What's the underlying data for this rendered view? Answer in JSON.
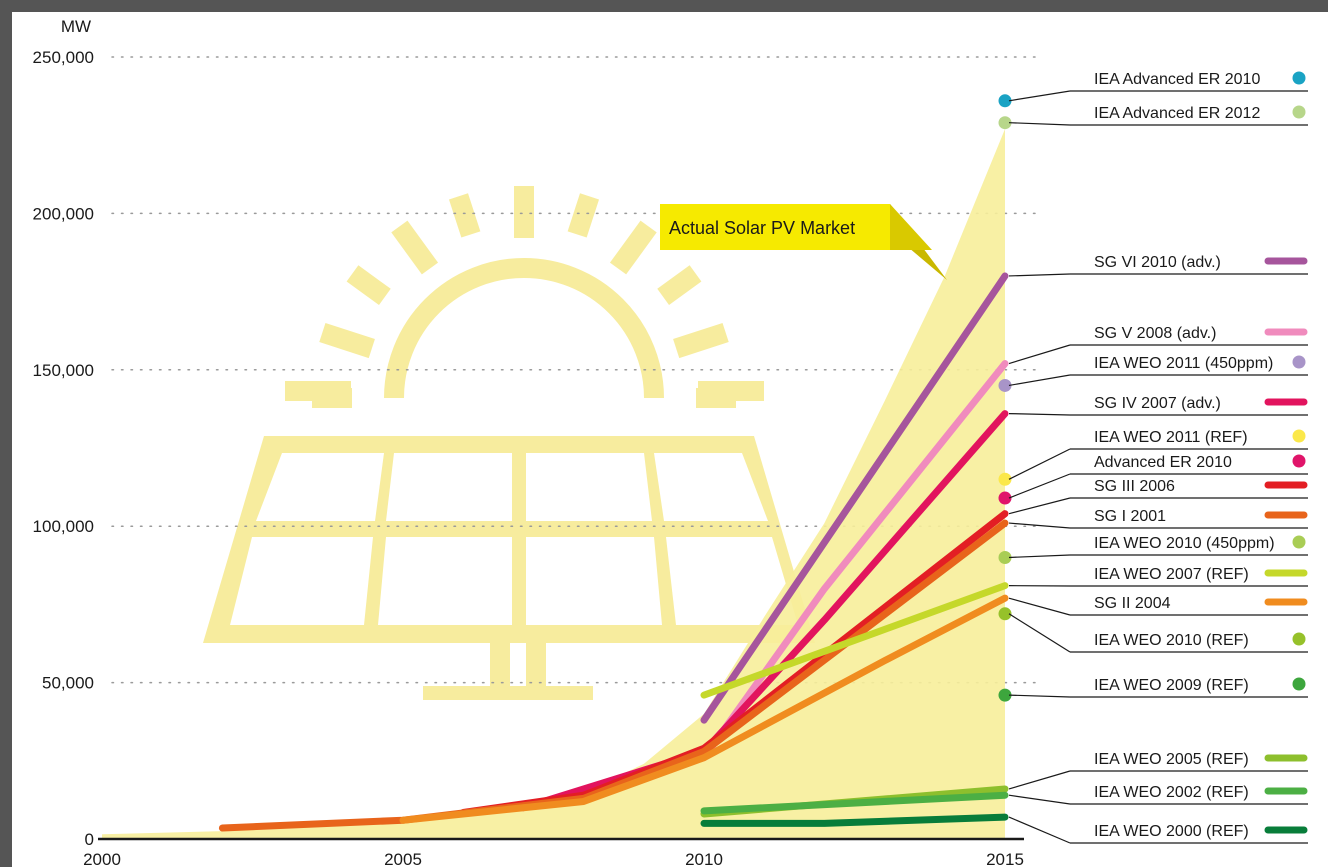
{
  "chart_data": {
    "type": "line",
    "ylabel": "MW",
    "xlim": [
      2000,
      2015
    ],
    "ylim": [
      0,
      250000
    ],
    "x_ticks": [
      "2000",
      "2005",
      "2010",
      "2015"
    ],
    "y_ticks": [
      "0",
      "50,000",
      "100,000",
      "150,000",
      "200,000",
      "250,000"
    ],
    "grid": "horizontal dotted",
    "legend_placement": "right",
    "annotation": "Actual Solar PV Market",
    "actual_market": {
      "name": "Actual Solar PV Market",
      "color": "#f7ee9a",
      "points": [
        [
          2000,
          1500
        ],
        [
          2002,
          2500
        ],
        [
          2004,
          4500
        ],
        [
          2006,
          8000
        ],
        [
          2008,
          15000
        ],
        [
          2009,
          24000
        ],
        [
          2010,
          40000
        ],
        [
          2011,
          71000
        ],
        [
          2012,
          101000
        ],
        [
          2013,
          140000
        ],
        [
          2014,
          180000
        ],
        [
          2015,
          227000
        ]
      ]
    },
    "series": [
      {
        "name": "IEA Advanced ER 2010",
        "kind": "point",
        "color": "#1aa3c4",
        "points": [
          [
            2015,
            236000
          ]
        ]
      },
      {
        "name": "IEA Advanced ER 2012",
        "kind": "point",
        "color": "#b7d68a",
        "points": [
          [
            2015,
            229000
          ]
        ]
      },
      {
        "name": "SG VI 2010 (adv.)",
        "kind": "line",
        "color": "#a6559c",
        "points": [
          [
            2010,
            38000
          ],
          [
            2015,
            180000
          ]
        ]
      },
      {
        "name": "SG V 2008 (adv.)",
        "kind": "line",
        "color": "#f08bbd",
        "points": [
          [
            2008,
            15000
          ],
          [
            2010,
            26000
          ],
          [
            2012,
            80000
          ],
          [
            2015,
            152000
          ]
        ]
      },
      {
        "name": "IEA WEO 2011 (450ppm)",
        "kind": "point",
        "color": "#a894c8",
        "points": [
          [
            2015,
            145000
          ]
        ]
      },
      {
        "name": "SG IV 2007 (adv.)",
        "kind": "line",
        "color": "#e2145e",
        "points": [
          [
            2007,
            10000
          ],
          [
            2010,
            28000
          ],
          [
            2012,
            70000
          ],
          [
            2015,
            136000
          ]
        ]
      },
      {
        "name": "IEA WEO 2011 (REF)",
        "kind": "point",
        "color": "#fbe84a",
        "points": [
          [
            2015,
            115000
          ]
        ]
      },
      {
        "name": "Advanced ER 2010",
        "kind": "point",
        "color": "#e0156a",
        "points": [
          [
            2015,
            109000
          ]
        ]
      },
      {
        "name": "SG III 2006",
        "kind": "line",
        "color": "#e31e24",
        "points": [
          [
            2006,
            8500
          ],
          [
            2008,
            14000
          ],
          [
            2010,
            29000
          ],
          [
            2015,
            104000
          ]
        ]
      },
      {
        "name": "SG I 2001",
        "kind": "line",
        "color": "#e8641b",
        "points": [
          [
            2002,
            3500
          ],
          [
            2005,
            6000
          ],
          [
            2008,
            13000
          ],
          [
            2010,
            28000
          ],
          [
            2015,
            101000
          ]
        ]
      },
      {
        "name": "IEA WEO 2010 (450ppm)",
        "kind": "point",
        "color": "#a9cd55",
        "points": [
          [
            2015,
            90000
          ]
        ]
      },
      {
        "name": "IEA WEO 2007 (REF)",
        "kind": "line",
        "color": "#c5d82a",
        "points": [
          [
            2010,
            46000
          ],
          [
            2015,
            81000
          ]
        ]
      },
      {
        "name": "SG II 2004",
        "kind": "line",
        "color": "#f08c1f",
        "points": [
          [
            2005,
            6000
          ],
          [
            2008,
            12000
          ],
          [
            2010,
            26000
          ],
          [
            2013,
            57000
          ],
          [
            2015,
            77000
          ]
        ]
      },
      {
        "name": "IEA WEO 2010 (REF)",
        "kind": "point",
        "color": "#96c12a",
        "points": [
          [
            2015,
            72000
          ]
        ]
      },
      {
        "name": "IEA WEO 2009 (REF)",
        "kind": "point",
        "color": "#3da63d",
        "points": [
          [
            2015,
            46000
          ]
        ]
      },
      {
        "name": "IEA WEO 2005 (REF)",
        "kind": "line",
        "color": "#8dbf2d",
        "points": [
          [
            2010,
            8000
          ],
          [
            2015,
            16000
          ]
        ]
      },
      {
        "name": "IEA WEO 2002 (REF)",
        "kind": "line",
        "color": "#4caf44",
        "points": [
          [
            2010,
            9000
          ],
          [
            2015,
            14000
          ]
        ]
      },
      {
        "name": "IEA WEO 2000 (REF)",
        "kind": "line",
        "color": "#087d3a",
        "points": [
          [
            2010,
            5000
          ],
          [
            2012,
            5000
          ],
          [
            2015,
            7000
          ]
        ]
      }
    ]
  }
}
